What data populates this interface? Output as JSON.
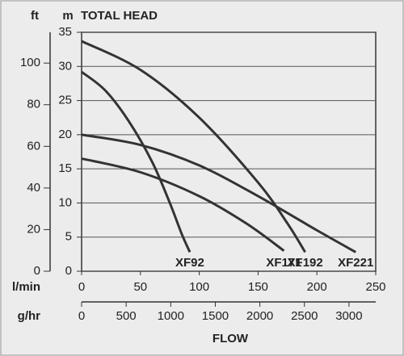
{
  "chart_data": {
    "type": "line",
    "title": "TOTAL HEAD",
    "ylabel": "m",
    "y2label": "ft",
    "xlabel": "l/min",
    "x2label": "g/hr",
    "axis_title": "FLOW",
    "xlim": [
      0,
      250
    ],
    "xticks": [
      0,
      50,
      100,
      150,
      200,
      250
    ],
    "x2lim": [
      0,
      3300
    ],
    "x2ticks": [
      0,
      500,
      1000,
      1500,
      2000,
      2500,
      3000
    ],
    "ylim": [
      0,
      35
    ],
    "yticks": [
      0,
      5,
      10,
      15,
      20,
      25,
      30,
      35
    ],
    "y2lim": [
      0,
      114.8
    ],
    "y2ticks": [
      0,
      20,
      40,
      60,
      80,
      100
    ],
    "grid": true,
    "series": [
      {
        "name": "XF92",
        "color": "#333333",
        "x": [
          0,
          20,
          40,
          60,
          75,
          85,
          92
        ],
        "values": [
          29.2,
          26.5,
          22,
          16,
          10,
          5.5,
          2.8
        ]
      },
      {
        "name": "XF171",
        "color": "#333333",
        "x": [
          0,
          50,
          100,
          140,
          172
        ],
        "values": [
          16.5,
          14.5,
          11,
          7,
          3
        ]
      },
      {
        "name": "XF192",
        "color": "#333333",
        "x": [
          0,
          50,
          100,
          150,
          175,
          190
        ],
        "values": [
          33.7,
          29.5,
          22.5,
          13,
          7,
          2.8
        ]
      },
      {
        "name": "XF221",
        "color": "#333333",
        "x": [
          0,
          50,
          100,
          150,
          200,
          233
        ],
        "values": [
          20,
          18.5,
          15.5,
          11,
          6,
          2.8
        ]
      }
    ]
  }
}
